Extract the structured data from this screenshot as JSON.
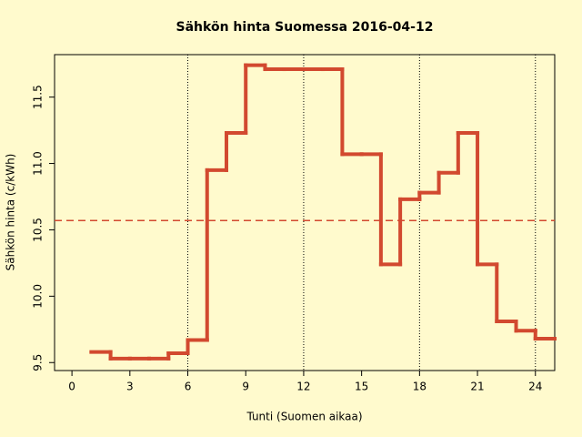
{
  "chart_data": {
    "type": "step",
    "title": "Sähkön hinta Suomessa 2016-04-12",
    "xlabel": "Tunti (Suomen aikaa)",
    "ylabel": "Sähkön hinta (c/kWh)",
    "x": [
      1,
      2,
      3,
      4,
      5,
      6,
      7,
      8,
      9,
      10,
      11,
      12,
      13,
      14,
      15,
      16,
      17,
      18,
      19,
      20,
      21,
      22,
      23,
      24,
      25
    ],
    "series": [
      {
        "color": "#d2492f",
        "values": [
          9.58,
          9.53,
          9.53,
          9.53,
          9.57,
          9.67,
          10.95,
          11.23,
          11.74,
          11.71,
          11.71,
          11.71,
          11.71,
          11.07,
          11.07,
          10.24,
          10.73,
          10.78,
          10.93,
          11.23,
          10.24,
          9.81,
          9.74,
          9.68,
          9.68
        ]
      }
    ],
    "mean_line": {
      "value": 10.57,
      "color": "#d2492f"
    },
    "vlines": [
      6,
      12,
      18,
      24
    ],
    "xlim": [
      -0.9,
      25
    ],
    "xticks": [
      0,
      3,
      6,
      9,
      12,
      15,
      18,
      21,
      24
    ],
    "ylim": [
      9.44,
      11.82
    ],
    "yticks": [
      9.5,
      {
        "value": 10,
        "label": "10.0"
      },
      {
        "value": 11,
        "label": "11.0"
      },
      10.5,
      11.5
    ]
  }
}
